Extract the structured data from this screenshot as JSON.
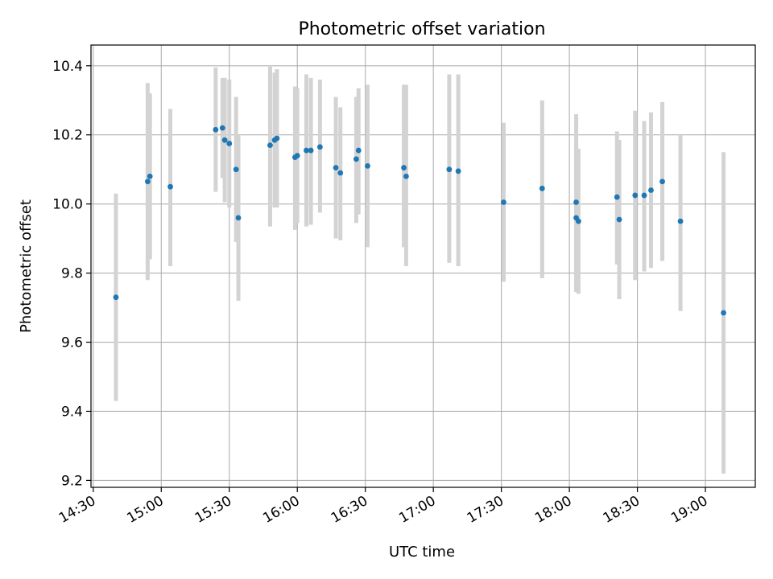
{
  "chart_data": {
    "type": "scatter",
    "title": "Photometric offset variation",
    "xlabel": "UTC time",
    "ylabel": "Photometric offset",
    "ylim": [
      9.18,
      10.46
    ],
    "xlim": [
      "14:29",
      "19:22"
    ],
    "grid": true,
    "x_ticks": [
      "14:30",
      "15:00",
      "15:30",
      "16:00",
      "16:30",
      "17:00",
      "17:30",
      "18:00",
      "18:30",
      "19:00"
    ],
    "y_ticks": [
      9.2,
      9.4,
      9.6,
      9.8,
      10.0,
      10.2,
      10.4
    ],
    "y_tick_labels": [
      "9.2",
      "9.4",
      "9.6",
      "9.8",
      "10.0",
      "10.2",
      "10.4"
    ],
    "colors": {
      "point": "#1f77b4",
      "errorbar": "#d3d3d3",
      "grid": "#b0b0b0"
    },
    "points": [
      {
        "t": "14:40",
        "y": 9.73,
        "lo": 9.43,
        "hi": 10.03
      },
      {
        "t": "14:54",
        "y": 10.065,
        "lo": 9.78,
        "hi": 10.35
      },
      {
        "t": "14:55",
        "y": 10.08,
        "lo": 9.84,
        "hi": 10.32
      },
      {
        "t": "15:04",
        "y": 10.05,
        "lo": 9.82,
        "hi": 10.275
      },
      {
        "t": "15:24",
        "y": 10.215,
        "lo": 10.035,
        "hi": 10.395
      },
      {
        "t": "15:27",
        "y": 10.22,
        "lo": 10.075,
        "hi": 10.365
      },
      {
        "t": "15:28",
        "y": 10.185,
        "lo": 10.005,
        "hi": 10.365
      },
      {
        "t": "15:30",
        "y": 10.175,
        "lo": 9.99,
        "hi": 10.36
      },
      {
        "t": "15:33",
        "y": 10.1,
        "lo": 9.89,
        "hi": 10.31
      },
      {
        "t": "15:34",
        "y": 9.96,
        "lo": 9.72,
        "hi": 10.2
      },
      {
        "t": "15:48",
        "y": 10.17,
        "lo": 9.935,
        "hi": 10.4
      },
      {
        "t": "15:50",
        "y": 10.185,
        "lo": 9.99,
        "hi": 10.38
      },
      {
        "t": "15:51",
        "y": 10.19,
        "lo": 9.99,
        "hi": 10.39
      },
      {
        "t": "15:59",
        "y": 10.135,
        "lo": 9.925,
        "hi": 10.34
      },
      {
        "t": "16:00",
        "y": 10.14,
        "lo": 9.945,
        "hi": 10.335
      },
      {
        "t": "16:04",
        "y": 10.155,
        "lo": 9.935,
        "hi": 10.375
      },
      {
        "t": "16:06",
        "y": 10.155,
        "lo": 9.94,
        "hi": 10.365
      },
      {
        "t": "16:10",
        "y": 10.165,
        "lo": 9.975,
        "hi": 10.36
      },
      {
        "t": "16:17",
        "y": 10.105,
        "lo": 9.9,
        "hi": 10.31
      },
      {
        "t": "16:19",
        "y": 10.09,
        "lo": 9.895,
        "hi": 10.28
      },
      {
        "t": "16:26",
        "y": 10.13,
        "lo": 9.945,
        "hi": 10.31
      },
      {
        "t": "16:27",
        "y": 10.155,
        "lo": 9.97,
        "hi": 10.335
      },
      {
        "t": "16:31",
        "y": 10.11,
        "lo": 9.875,
        "hi": 10.345
      },
      {
        "t": "16:47",
        "y": 10.105,
        "lo": 9.875,
        "hi": 10.345
      },
      {
        "t": "16:48",
        "y": 10.08,
        "lo": 9.82,
        "hi": 10.345
      },
      {
        "t": "17:07",
        "y": 10.1,
        "lo": 9.83,
        "hi": 10.375
      },
      {
        "t": "17:11",
        "y": 10.095,
        "lo": 9.82,
        "hi": 10.375
      },
      {
        "t": "17:31",
        "y": 10.005,
        "lo": 9.775,
        "hi": 10.235
      },
      {
        "t": "17:48",
        "y": 10.045,
        "lo": 9.785,
        "hi": 10.3
      },
      {
        "t": "18:03",
        "y": 10.005,
        "lo": 9.75,
        "hi": 10.26
      },
      {
        "t": "18:03",
        "y": 9.96,
        "lo": 9.745,
        "hi": 10.17
      },
      {
        "t": "18:04",
        "y": 9.95,
        "lo": 9.74,
        "hi": 10.16
      },
      {
        "t": "18:21",
        "y": 10.02,
        "lo": 9.825,
        "hi": 10.21
      },
      {
        "t": "18:22",
        "y": 9.955,
        "lo": 9.725,
        "hi": 10.185
      },
      {
        "t": "18:29",
        "y": 10.025,
        "lo": 9.78,
        "hi": 10.27
      },
      {
        "t": "18:33",
        "y": 10.025,
        "lo": 9.805,
        "hi": 10.24
      },
      {
        "t": "18:36",
        "y": 10.04,
        "lo": 9.815,
        "hi": 10.265
      },
      {
        "t": "18:41",
        "y": 10.065,
        "lo": 9.835,
        "hi": 10.295
      },
      {
        "t": "18:49",
        "y": 9.95,
        "lo": 9.69,
        "hi": 10.2
      },
      {
        "t": "19:08",
        "y": 9.685,
        "lo": 9.22,
        "hi": 10.15
      }
    ]
  }
}
